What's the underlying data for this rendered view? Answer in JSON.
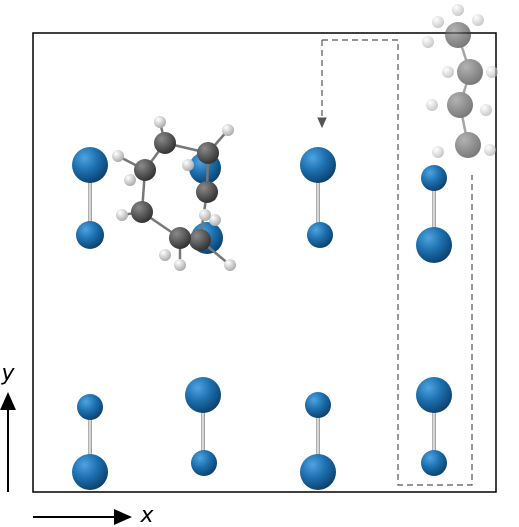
{
  "axes": {
    "x_label": "x",
    "y_label": "y"
  }
}
